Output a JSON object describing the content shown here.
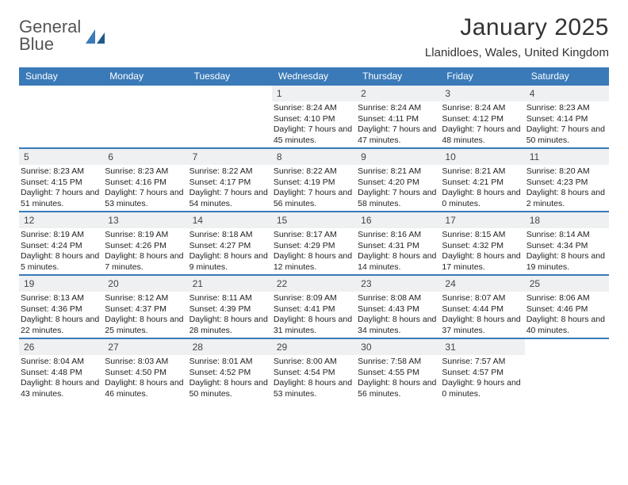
{
  "brand": {
    "word1": "General",
    "word2": "Blue"
  },
  "title": "January 2025",
  "location": "Llanidloes, Wales, United Kingdom",
  "colors": {
    "header_bg": "#3a7ab8",
    "header_text": "#ffffff",
    "daynum_bg": "#eef0f1",
    "rule": "#3a7ab8",
    "text": "#222222"
  },
  "day_labels": [
    "Sunday",
    "Monday",
    "Tuesday",
    "Wednesday",
    "Thursday",
    "Friday",
    "Saturday"
  ],
  "weeks": [
    [
      {
        "n": "",
        "sr": "",
        "ss": "",
        "dl": ""
      },
      {
        "n": "",
        "sr": "",
        "ss": "",
        "dl": ""
      },
      {
        "n": "",
        "sr": "",
        "ss": "",
        "dl": ""
      },
      {
        "n": "1",
        "sr": "Sunrise: 8:24 AM",
        "ss": "Sunset: 4:10 PM",
        "dl": "Daylight: 7 hours and 45 minutes."
      },
      {
        "n": "2",
        "sr": "Sunrise: 8:24 AM",
        "ss": "Sunset: 4:11 PM",
        "dl": "Daylight: 7 hours and 47 minutes."
      },
      {
        "n": "3",
        "sr": "Sunrise: 8:24 AM",
        "ss": "Sunset: 4:12 PM",
        "dl": "Daylight: 7 hours and 48 minutes."
      },
      {
        "n": "4",
        "sr": "Sunrise: 8:23 AM",
        "ss": "Sunset: 4:14 PM",
        "dl": "Daylight: 7 hours and 50 minutes."
      }
    ],
    [
      {
        "n": "5",
        "sr": "Sunrise: 8:23 AM",
        "ss": "Sunset: 4:15 PM",
        "dl": "Daylight: 7 hours and 51 minutes."
      },
      {
        "n": "6",
        "sr": "Sunrise: 8:23 AM",
        "ss": "Sunset: 4:16 PM",
        "dl": "Daylight: 7 hours and 53 minutes."
      },
      {
        "n": "7",
        "sr": "Sunrise: 8:22 AM",
        "ss": "Sunset: 4:17 PM",
        "dl": "Daylight: 7 hours and 54 minutes."
      },
      {
        "n": "8",
        "sr": "Sunrise: 8:22 AM",
        "ss": "Sunset: 4:19 PM",
        "dl": "Daylight: 7 hours and 56 minutes."
      },
      {
        "n": "9",
        "sr": "Sunrise: 8:21 AM",
        "ss": "Sunset: 4:20 PM",
        "dl": "Daylight: 7 hours and 58 minutes."
      },
      {
        "n": "10",
        "sr": "Sunrise: 8:21 AM",
        "ss": "Sunset: 4:21 PM",
        "dl": "Daylight: 8 hours and 0 minutes."
      },
      {
        "n": "11",
        "sr": "Sunrise: 8:20 AM",
        "ss": "Sunset: 4:23 PM",
        "dl": "Daylight: 8 hours and 2 minutes."
      }
    ],
    [
      {
        "n": "12",
        "sr": "Sunrise: 8:19 AM",
        "ss": "Sunset: 4:24 PM",
        "dl": "Daylight: 8 hours and 5 minutes."
      },
      {
        "n": "13",
        "sr": "Sunrise: 8:19 AM",
        "ss": "Sunset: 4:26 PM",
        "dl": "Daylight: 8 hours and 7 minutes."
      },
      {
        "n": "14",
        "sr": "Sunrise: 8:18 AM",
        "ss": "Sunset: 4:27 PM",
        "dl": "Daylight: 8 hours and 9 minutes."
      },
      {
        "n": "15",
        "sr": "Sunrise: 8:17 AM",
        "ss": "Sunset: 4:29 PM",
        "dl": "Daylight: 8 hours and 12 minutes."
      },
      {
        "n": "16",
        "sr": "Sunrise: 8:16 AM",
        "ss": "Sunset: 4:31 PM",
        "dl": "Daylight: 8 hours and 14 minutes."
      },
      {
        "n": "17",
        "sr": "Sunrise: 8:15 AM",
        "ss": "Sunset: 4:32 PM",
        "dl": "Daylight: 8 hours and 17 minutes."
      },
      {
        "n": "18",
        "sr": "Sunrise: 8:14 AM",
        "ss": "Sunset: 4:34 PM",
        "dl": "Daylight: 8 hours and 19 minutes."
      }
    ],
    [
      {
        "n": "19",
        "sr": "Sunrise: 8:13 AM",
        "ss": "Sunset: 4:36 PM",
        "dl": "Daylight: 8 hours and 22 minutes."
      },
      {
        "n": "20",
        "sr": "Sunrise: 8:12 AM",
        "ss": "Sunset: 4:37 PM",
        "dl": "Daylight: 8 hours and 25 minutes."
      },
      {
        "n": "21",
        "sr": "Sunrise: 8:11 AM",
        "ss": "Sunset: 4:39 PM",
        "dl": "Daylight: 8 hours and 28 minutes."
      },
      {
        "n": "22",
        "sr": "Sunrise: 8:09 AM",
        "ss": "Sunset: 4:41 PM",
        "dl": "Daylight: 8 hours and 31 minutes."
      },
      {
        "n": "23",
        "sr": "Sunrise: 8:08 AM",
        "ss": "Sunset: 4:43 PM",
        "dl": "Daylight: 8 hours and 34 minutes."
      },
      {
        "n": "24",
        "sr": "Sunrise: 8:07 AM",
        "ss": "Sunset: 4:44 PM",
        "dl": "Daylight: 8 hours and 37 minutes."
      },
      {
        "n": "25",
        "sr": "Sunrise: 8:06 AM",
        "ss": "Sunset: 4:46 PM",
        "dl": "Daylight: 8 hours and 40 minutes."
      }
    ],
    [
      {
        "n": "26",
        "sr": "Sunrise: 8:04 AM",
        "ss": "Sunset: 4:48 PM",
        "dl": "Daylight: 8 hours and 43 minutes."
      },
      {
        "n": "27",
        "sr": "Sunrise: 8:03 AM",
        "ss": "Sunset: 4:50 PM",
        "dl": "Daylight: 8 hours and 46 minutes."
      },
      {
        "n": "28",
        "sr": "Sunrise: 8:01 AM",
        "ss": "Sunset: 4:52 PM",
        "dl": "Daylight: 8 hours and 50 minutes."
      },
      {
        "n": "29",
        "sr": "Sunrise: 8:00 AM",
        "ss": "Sunset: 4:54 PM",
        "dl": "Daylight: 8 hours and 53 minutes."
      },
      {
        "n": "30",
        "sr": "Sunrise: 7:58 AM",
        "ss": "Sunset: 4:55 PM",
        "dl": "Daylight: 8 hours and 56 minutes."
      },
      {
        "n": "31",
        "sr": "Sunrise: 7:57 AM",
        "ss": "Sunset: 4:57 PM",
        "dl": "Daylight: 9 hours and 0 minutes."
      },
      {
        "n": "",
        "sr": "",
        "ss": "",
        "dl": ""
      }
    ]
  ]
}
